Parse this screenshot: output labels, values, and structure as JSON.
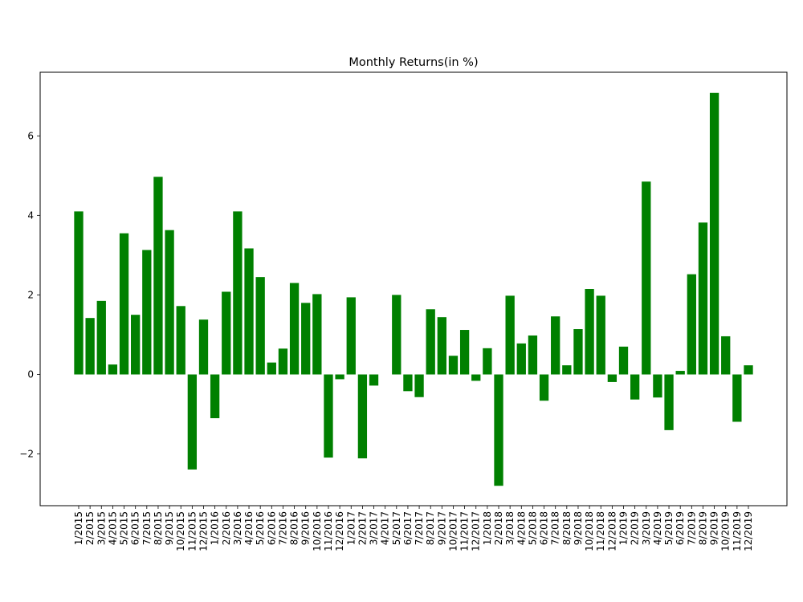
{
  "chart_data": {
    "type": "bar",
    "title": "Monthly Returns(in %)",
    "xlabel": "",
    "ylabel": "",
    "bar_color": "#008000",
    "ylim": [
      -3.3,
      7.6
    ],
    "yticks": [
      -2,
      0,
      2,
      4,
      6
    ],
    "ytick_labels": [
      "−2",
      "0",
      "2",
      "4",
      "6"
    ],
    "grid": false,
    "categories": [
      "1/2015",
      "2/2015",
      "3/2015",
      "4/2015",
      "5/2015",
      "6/2015",
      "7/2015",
      "8/2015",
      "9/2015",
      "10/2015",
      "11/2015",
      "12/2015",
      "1/2016",
      "2/2016",
      "3/2016",
      "4/2016",
      "5/2016",
      "6/2016",
      "7/2016",
      "8/2016",
      "9/2016",
      "10/2016",
      "11/2016",
      "12/2016",
      "1/2017",
      "2/2017",
      "3/2017",
      "4/2017",
      "5/2017",
      "6/2017",
      "7/2017",
      "8/2017",
      "9/2017",
      "10/2017",
      "11/2017",
      "12/2017",
      "1/2018",
      "2/2018",
      "3/2018",
      "4/2018",
      "5/2018",
      "6/2018",
      "7/2018",
      "8/2018",
      "9/2018",
      "10/2018",
      "11/2018",
      "12/2018",
      "1/2019",
      "2/2019",
      "3/2019",
      "4/2019",
      "5/2019",
      "6/2019",
      "7/2019",
      "8/2019",
      "9/2019",
      "10/2019",
      "11/2019",
      "12/2019"
    ],
    "values": [
      4.1,
      1.42,
      1.85,
      0.25,
      3.55,
      1.5,
      3.13,
      4.97,
      3.63,
      1.72,
      -2.39,
      1.38,
      -1.1,
      2.08,
      4.1,
      3.17,
      2.45,
      0.3,
      0.65,
      2.3,
      1.8,
      2.02,
      -2.09,
      -0.12,
      1.94,
      -2.11,
      -0.28,
      0.0,
      2.0,
      -0.42,
      -0.57,
      1.64,
      1.44,
      0.47,
      1.12,
      -0.16,
      0.66,
      -2.8,
      1.98,
      0.78,
      0.98,
      -0.66,
      1.46,
      0.23,
      1.14,
      2.15,
      1.98,
      -0.19,
      0.7,
      -0.63,
      4.85,
      -0.58,
      -1.4,
      0.09,
      2.52,
      3.82,
      7.08,
      0.96,
      -1.19,
      0.23
    ]
  }
}
